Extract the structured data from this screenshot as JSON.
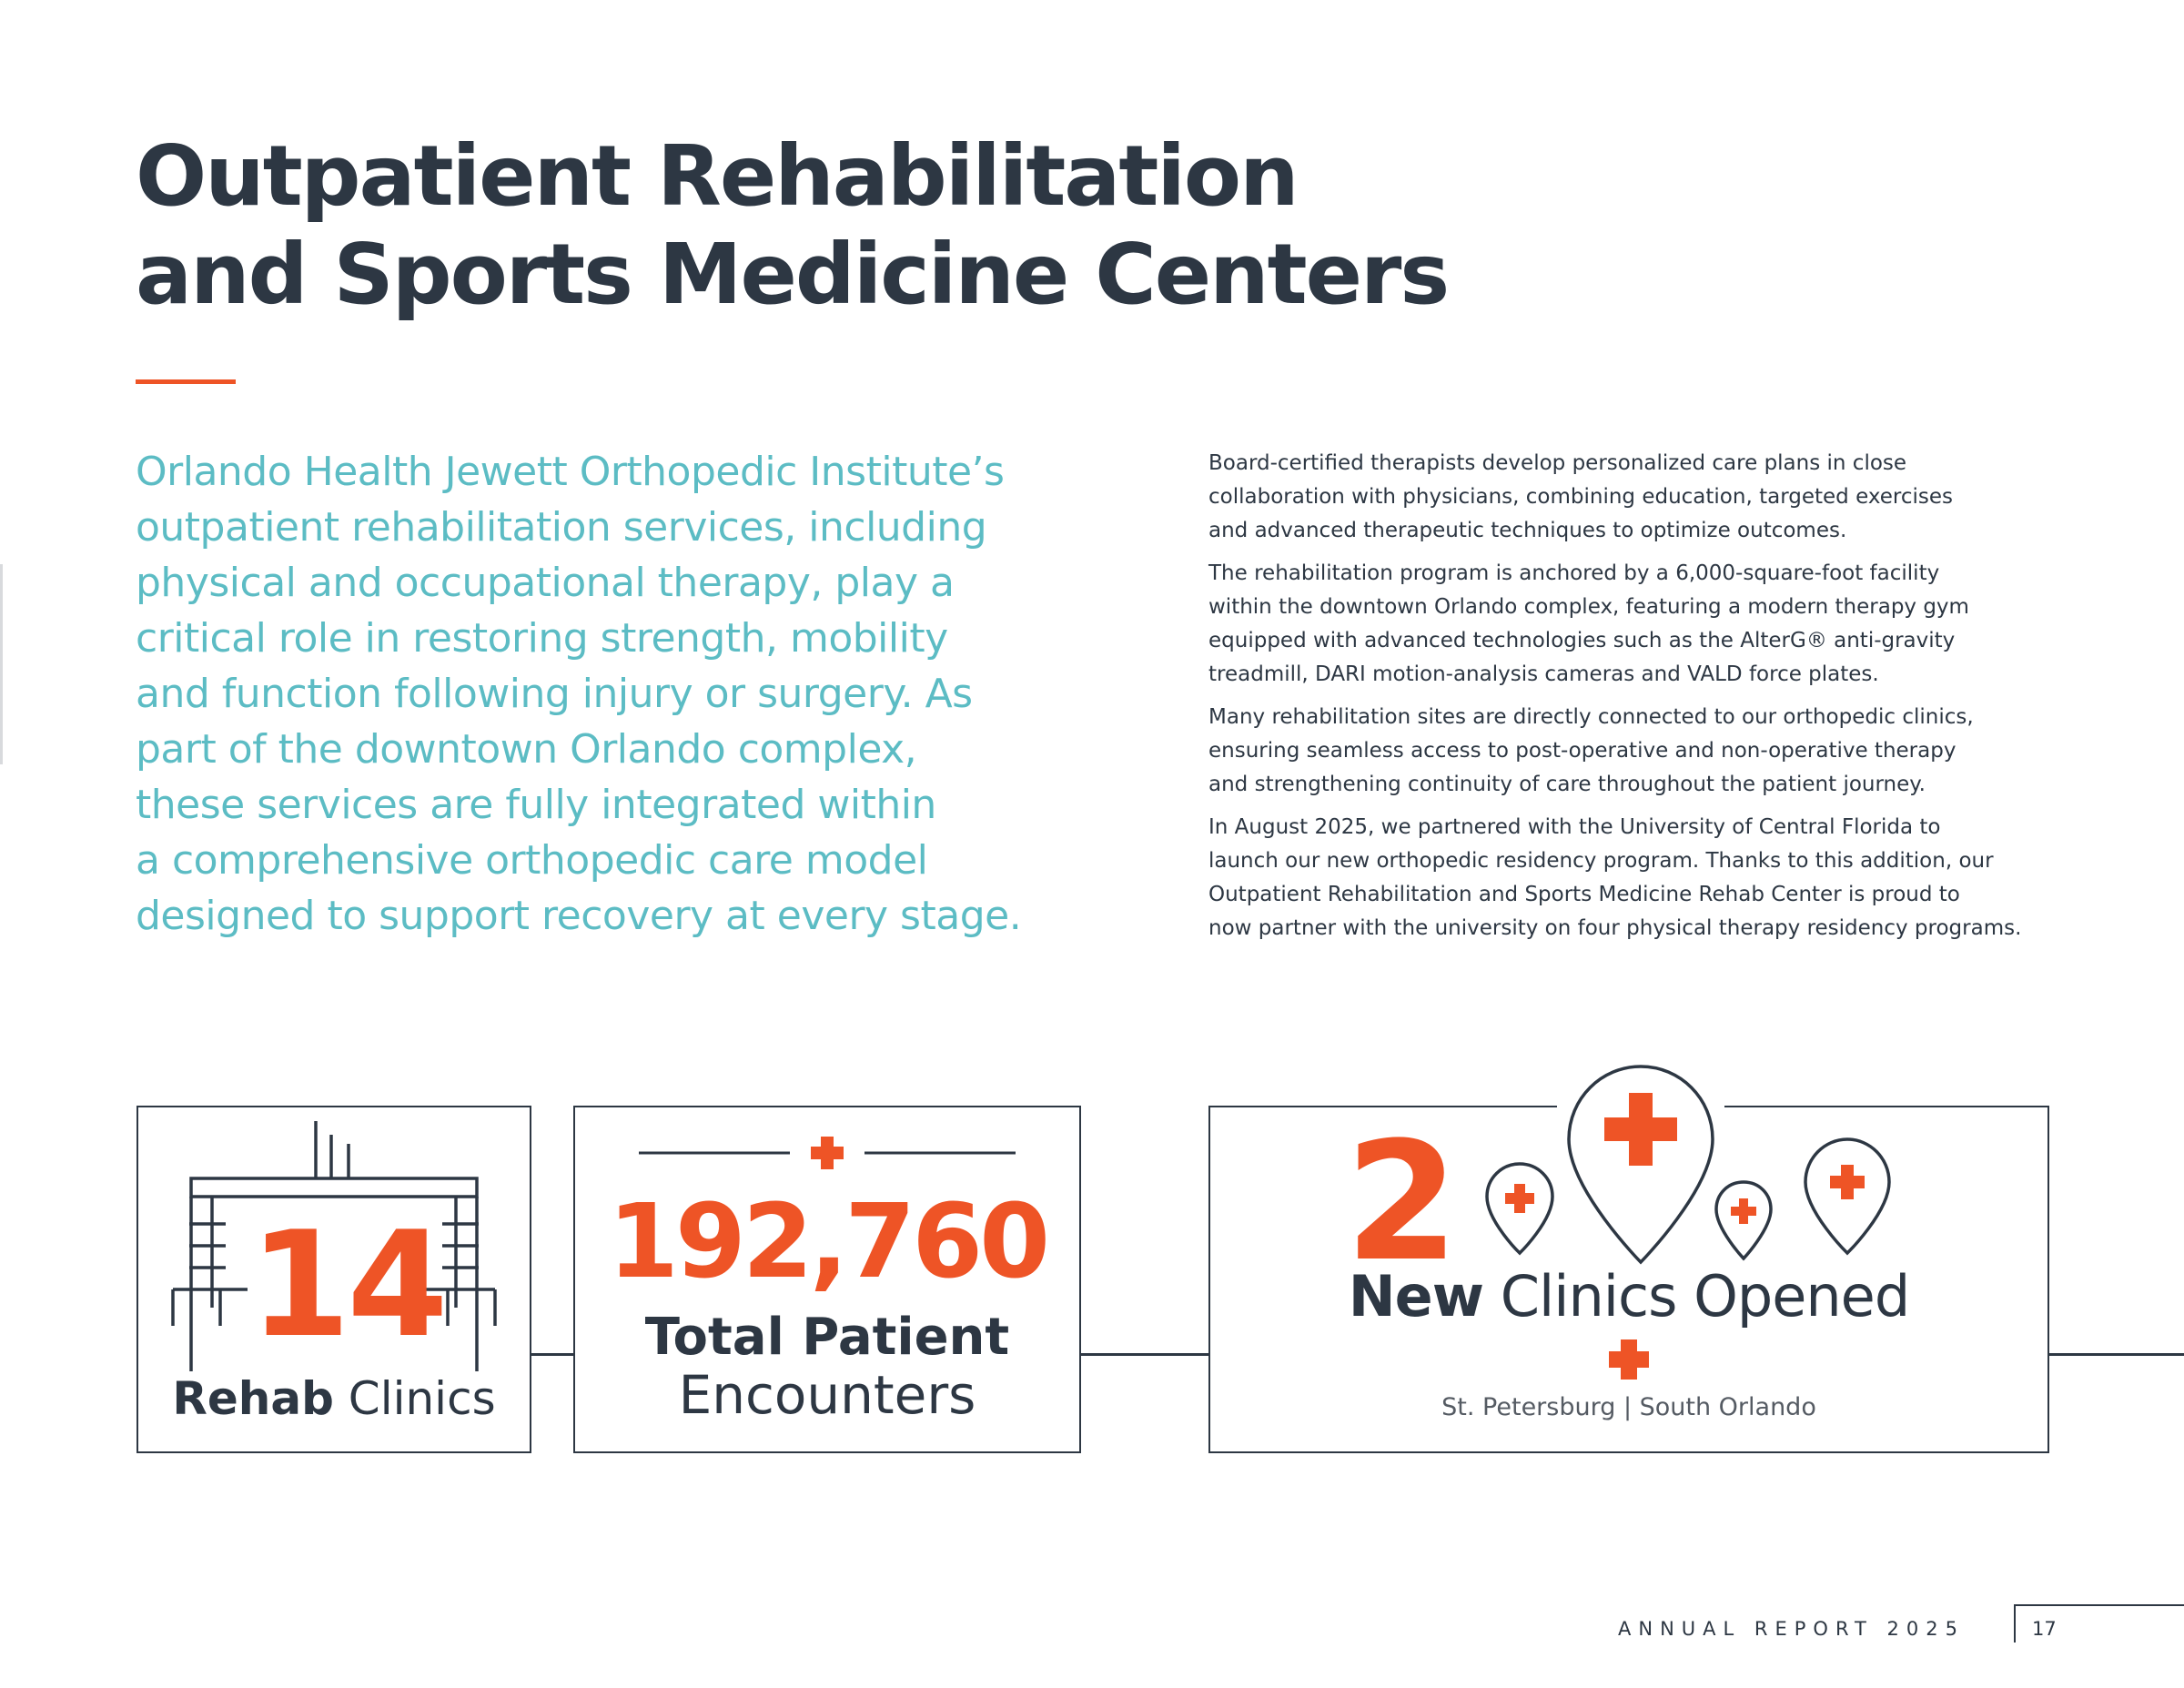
{
  "heading": {
    "lines": [
      "Outpatient Rehabilitation",
      "and Sports Medicine Centers"
    ]
  },
  "intro_lines": [
    "Orlando Health Jewett Orthopedic Institute’s",
    "outpatient rehabilitation services, including",
    "physical and occupational therapy, play a",
    "critical role in restoring strength, mobility",
    "and function following injury or surgery. As",
    "part of the downtown Orlando complex,",
    "these services are fully integrated within",
    "a comprehensive orthopedic care model",
    "designed to support recovery at every stage."
  ],
  "paragraphs": [
    [
      "Board-certified therapists develop personalized care plans in close",
      "collaboration with physicians, combining education, targeted exercises",
      "and advanced therapeutic techniques to optimize outcomes."
    ],
    [
      "The rehabilitation program is anchored by a 6,000-square-foot facility",
      "within the downtown Orlando complex, featuring a modern therapy gym",
      "equipped with advanced technologies such as the AlterG® anti-gravity",
      "treadmill, DARI motion-analysis cameras and VALD force plates."
    ],
    [
      "Many rehabilitation sites are directly connected to our orthopedic clinics,",
      "ensuring seamless access to post-operative and non-operative therapy",
      "and strengthening continuity of care throughout the patient journey."
    ],
    [
      "In August 2025, we partnered with the University of Central Florida to",
      "launch our new orthopedic residency program. Thanks to this addition, our",
      "Outpatient Rehabilitation and Sports Medicine Rehab Center is proud to",
      "now partner with the university on four physical therapy residency programs."
    ]
  ],
  "stats": {
    "clinics": {
      "value": "14",
      "label_bold": "Rehab",
      "label_rest": " Clinics",
      "icon": "building-icon"
    },
    "encounters": {
      "value": "192,760",
      "label_bold": "Total Patient",
      "label_rest": "Encounters",
      "icon": "medical-cross-icon"
    },
    "new_clinics": {
      "value": "2",
      "label_bold": "New",
      "label_rest": " Clinics Opened",
      "locations": "St. Petersburg  |  South Orlando",
      "icon": "map-pin-cross-icon"
    }
  },
  "footer": {
    "label": "ANNUAL REPORT 2025",
    "page": "17"
  },
  "colors": {
    "accent": "#ee5426",
    "teal": "#5cbcc4",
    "navy": "#2d3743"
  }
}
